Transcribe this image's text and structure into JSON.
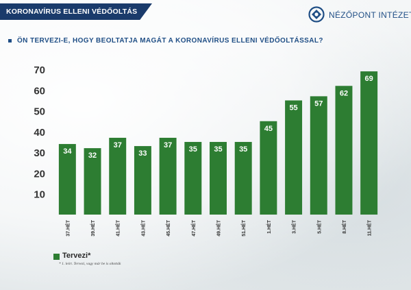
{
  "header": {
    "banner_title": "KORONAVÍRUS ELLENI VÉDŐOLTÁS",
    "logo_text": "NÉZŐPONT INTÉZET",
    "question": "ÖN TERVEZI-E, HOGY BEOLTATJA MAGÁT A KORONAVÍRUS ELLENI VÉDŐOLTÁSSAL?"
  },
  "legend": {
    "label": "Tervezi*"
  },
  "footnote": "* 1. leírt. Tervezi, vagy már be is oltották",
  "colors": {
    "bar": "#2d7d32",
    "banner": "#1a3b6b",
    "brand": "#1f4e85",
    "value_label": "#ffffff"
  },
  "chart_data": {
    "type": "bar",
    "categories": [
      "37.HÉT",
      "39.HÉT",
      "41.HÉT",
      "43.HÉT",
      "45.HÉT",
      "47.HÉT",
      "49.HÉT",
      "51.HÉT",
      "1.HÉT",
      "3.HÉT",
      "5.HÉT",
      "8.HÉT",
      "11.HÉT"
    ],
    "series": [
      {
        "name": "Tervezi*",
        "values": [
          34,
          32,
          37,
          33,
          37,
          35,
          35,
          35,
          45,
          55,
          57,
          62,
          69
        ]
      }
    ],
    "yticks": [
      10,
      20,
      30,
      40,
      50,
      60,
      70
    ],
    "ylim": [
      0,
      72
    ],
    "grid": false,
    "legend_position": "bottom-left"
  }
}
